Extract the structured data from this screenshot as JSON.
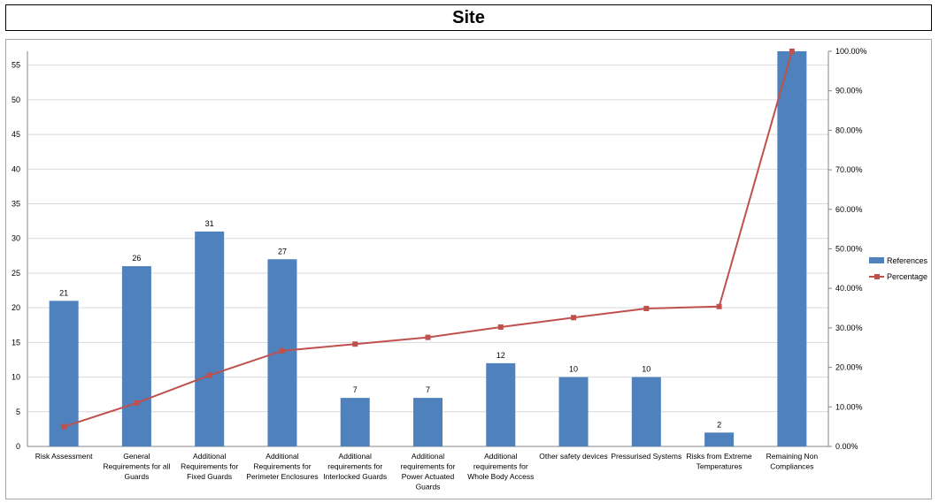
{
  "title": "Site",
  "chart_data": {
    "type": "bar+line",
    "title": "Site",
    "categories": [
      [
        "Risk Assessment"
      ],
      [
        "General",
        "Requirements for all",
        "Guards"
      ],
      [
        "Additional",
        "Requirements for",
        "Fixed Guards"
      ],
      [
        "Additional",
        "Requirements for",
        "Perimeter Enclosures"
      ],
      [
        "Additional",
        "requirements for",
        "Interlocked Guards"
      ],
      [
        "Additional",
        "requirements for",
        "Power Actuated",
        "Guards"
      ],
      [
        "Additional",
        "requirements for",
        "Whole Body Access"
      ],
      [
        "Other safety devices"
      ],
      [
        "Pressurised Systems"
      ],
      [
        "Risks from Extreme",
        "Temperatures"
      ],
      [
        "Remaining Non",
        "Compliances"
      ]
    ],
    "series": [
      {
        "name": "References",
        "type": "bar",
        "axis": "left",
        "color": "#4f81bd",
        "values": [
          21,
          26,
          31,
          27,
          7,
          7,
          12,
          10,
          10,
          2,
          57
        ],
        "data_labels": [
          "21",
          "26",
          "31",
          "27",
          "7",
          "7",
          "12",
          "10",
          "10",
          "2",
          ""
        ]
      },
      {
        "name": "Percentage",
        "type": "line",
        "axis": "right",
        "color": "#c0504d",
        "values": [
          5.0,
          11.0,
          18.0,
          24.2,
          25.9,
          27.6,
          30.2,
          32.6,
          34.9,
          35.4,
          100.0
        ]
      }
    ],
    "y_left": {
      "min": 0,
      "max": 57,
      "ticks": [
        "0",
        "5",
        "10",
        "15",
        "20",
        "25",
        "30",
        "35",
        "40",
        "45",
        "50",
        "55"
      ],
      "tick_values": [
        0,
        5,
        10,
        15,
        20,
        25,
        30,
        35,
        40,
        45,
        50,
        55
      ]
    },
    "y_right": {
      "min": 0,
      "max": 100,
      "ticks": [
        "0.00%",
        "10.00%",
        "20.00%",
        "30.00%",
        "40.00%",
        "50.00%",
        "60.00%",
        "70.00%",
        "80.00%",
        "90.00%",
        "100.00%"
      ],
      "tick_values": [
        0,
        10,
        20,
        30,
        40,
        50,
        60,
        70,
        80,
        90,
        100
      ]
    },
    "grid": true,
    "legend": {
      "placement": "right",
      "entries": [
        "References",
        "Percentage"
      ]
    }
  }
}
